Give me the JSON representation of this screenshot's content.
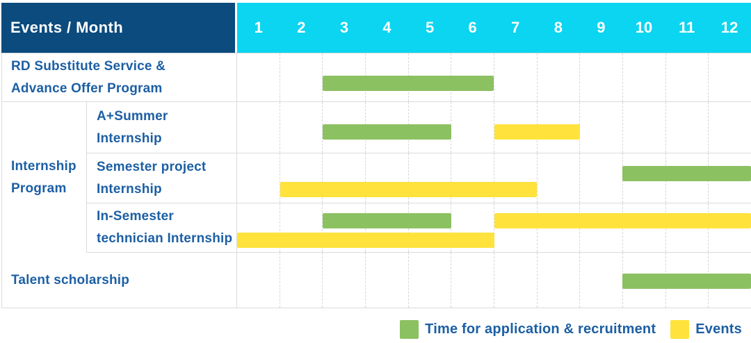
{
  "header": {
    "corner_label": "Events / Month"
  },
  "colors": {
    "header_bg": "#0B4B7E",
    "month_header_bg": "#0BD5F0",
    "application_bar": "#8CC162",
    "event_bar": "#FFE33C",
    "label_text": "#1C5FA4",
    "grid_line": "#DBDBDB"
  },
  "legend": [
    {
      "kind": "application",
      "label": "Time for application & recruitment"
    },
    {
      "kind": "event",
      "label": "Events"
    }
  ],
  "chart_data": {
    "type": "bar",
    "subtype": "gantt",
    "title": "Events / Month",
    "x_categories": [
      "1",
      "2",
      "3",
      "4",
      "5",
      "6",
      "7",
      "8",
      "9",
      "10",
      "11",
      "12"
    ],
    "x_range": [
      1,
      12
    ],
    "grid": true,
    "legend_position": "bottom-right",
    "rows": [
      {
        "group": null,
        "label": "RD Substitute Service &\nAdvance Offer Program",
        "bars": [
          {
            "kind": "application",
            "start_month": 3,
            "end_month": 6,
            "lane": 0
          }
        ]
      },
      {
        "group": "Internship\nProgram",
        "label": "A+Summer\nInternship",
        "bars": [
          {
            "kind": "application",
            "start_month": 3,
            "end_month": 5,
            "lane": 0
          },
          {
            "kind": "event",
            "start_month": 7,
            "end_month": 8,
            "lane": 0
          }
        ]
      },
      {
        "group": "Internship\nProgram",
        "label": "Semester project\nInternship",
        "bars": [
          {
            "kind": "application",
            "start_month": 10,
            "end_month": 12,
            "lane": 0
          },
          {
            "kind": "event",
            "start_month": 2,
            "end_month": 7,
            "lane": 1
          }
        ]
      },
      {
        "group": "Internship\nProgram",
        "label": "In-Semester\ntechnician Internship",
        "bars": [
          {
            "kind": "application",
            "start_month": 3,
            "end_month": 5,
            "lane": 0
          },
          {
            "kind": "event",
            "start_month": 7,
            "end_month": 12,
            "lane": 0
          },
          {
            "kind": "event",
            "start_month": 1,
            "end_month": 6,
            "lane": 1
          }
        ]
      },
      {
        "group": null,
        "label": "Talent scholarship",
        "bars": [
          {
            "kind": "application",
            "start_month": 10,
            "end_month": 12,
            "lane": 0
          }
        ]
      }
    ]
  }
}
